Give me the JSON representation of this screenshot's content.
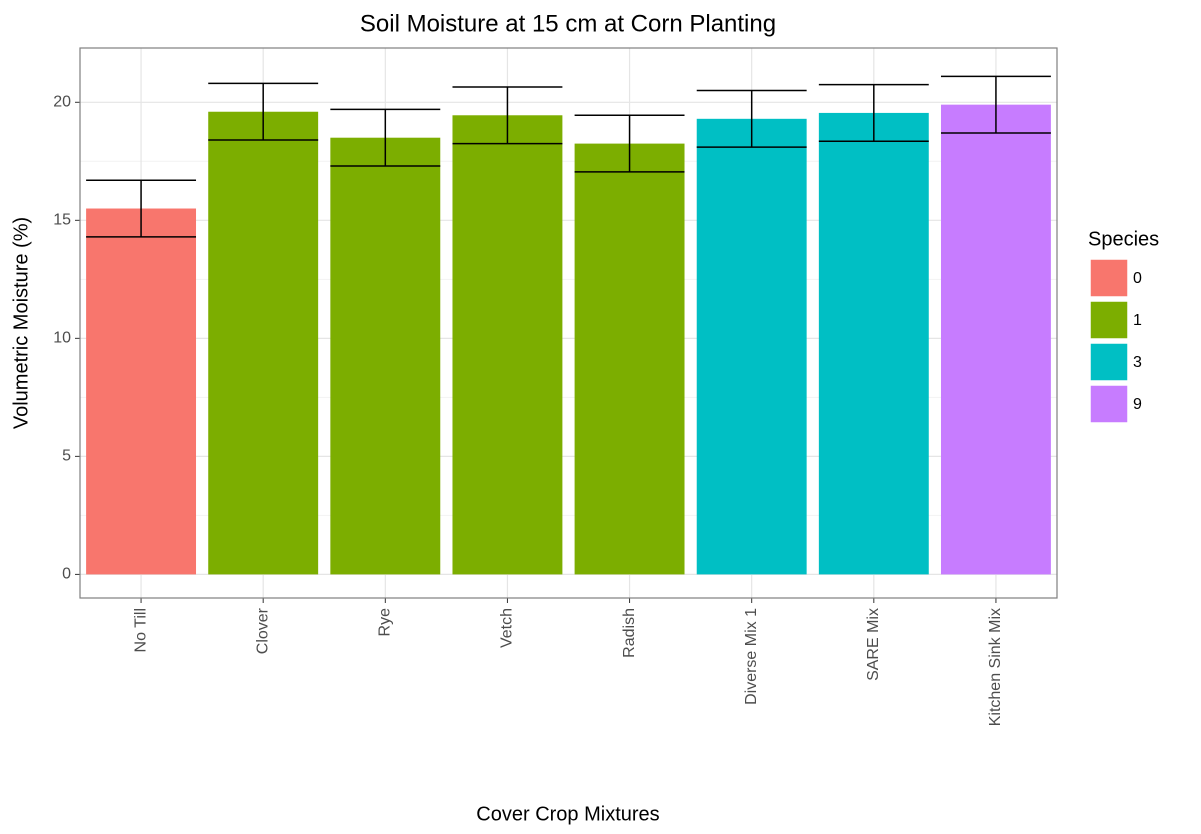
{
  "chart_data": {
    "type": "bar",
    "title": "Soil Moisture at 15 cm at Corn Planting",
    "x_label": "Cover Crop Mixtures",
    "y_label": "Volumetric Moisture (%)",
    "categories": [
      "No Till",
      "Clover",
      "Rye",
      "Vetch",
      "Radish",
      "Diverse Mix 1",
      "SARE Mix",
      "Kitchen Sink Mix"
    ],
    "legend_title": "Species",
    "legend": "right",
    "series": [
      {
        "name": "0",
        "color": "#f8766d",
        "values": [
          15.5,
          null,
          null,
          null,
          null,
          null,
          null,
          null
        ],
        "errors": [
          1.2,
          null,
          null,
          null,
          null,
          null,
          null,
          null
        ]
      },
      {
        "name": "1",
        "color": "#7cae00",
        "values": [
          null,
          19.6,
          18.5,
          19.45,
          18.25,
          null,
          null,
          null
        ],
        "errors": [
          null,
          1.2,
          1.2,
          1.2,
          1.2,
          null,
          null,
          null
        ]
      },
      {
        "name": "3",
        "color": "#00bfc4",
        "values": [
          null,
          null,
          null,
          null,
          null,
          19.3,
          19.55,
          null
        ],
        "errors": [
          null,
          null,
          null,
          null,
          null,
          1.2,
          1.2,
          null
        ]
      },
      {
        "name": "9",
        "color": "#c77cff",
        "values": [
          null,
          null,
          null,
          null,
          null,
          null,
          null,
          19.9
        ],
        "errors": [
          null,
          null,
          null,
          null,
          null,
          null,
          null,
          1.2
        ]
      }
    ],
    "ylim": [
      -1,
      22.3
    ],
    "yticks": [
      0,
      5,
      10,
      15,
      20
    ],
    "grid": true
  }
}
